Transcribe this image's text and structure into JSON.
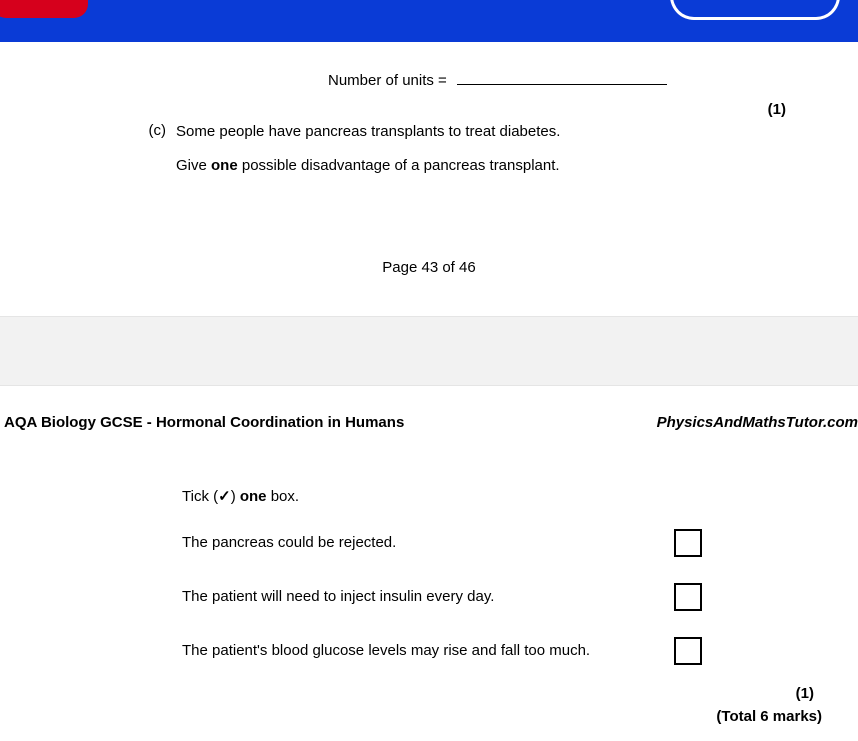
{
  "page1": {
    "units_label": "Number of units =",
    "mark1": "(1)",
    "part_label": "(c)",
    "part_line1": "Some people have pancreas transplants to treat diabetes.",
    "part_line2_pre": "Give ",
    "part_line2_bold": "one",
    "part_line2_post": " possible disadvantage of a pancreas transplant.",
    "page_num": "Page 43 of 46"
  },
  "page2": {
    "header_left": "AQA Biology GCSE - Hormonal Coordination in Humans",
    "header_right": "PhysicsAndMathsTutor.com",
    "tick_pre": "Tick (",
    "tick_sym": "✓",
    "tick_mid": ") ",
    "tick_bold": "one",
    "tick_post": " box.",
    "options": [
      "The pancreas could be rejected.",
      "The patient will need to inject insulin every day.",
      "The patient's blood glucose levels may rise and fall too much."
    ],
    "mark2": "(1)",
    "total": "(Total 6 marks)"
  },
  "colors": {
    "topbar": "#0a3bd6",
    "red": "#d6001c",
    "gap_bg": "#f2f2f2"
  }
}
